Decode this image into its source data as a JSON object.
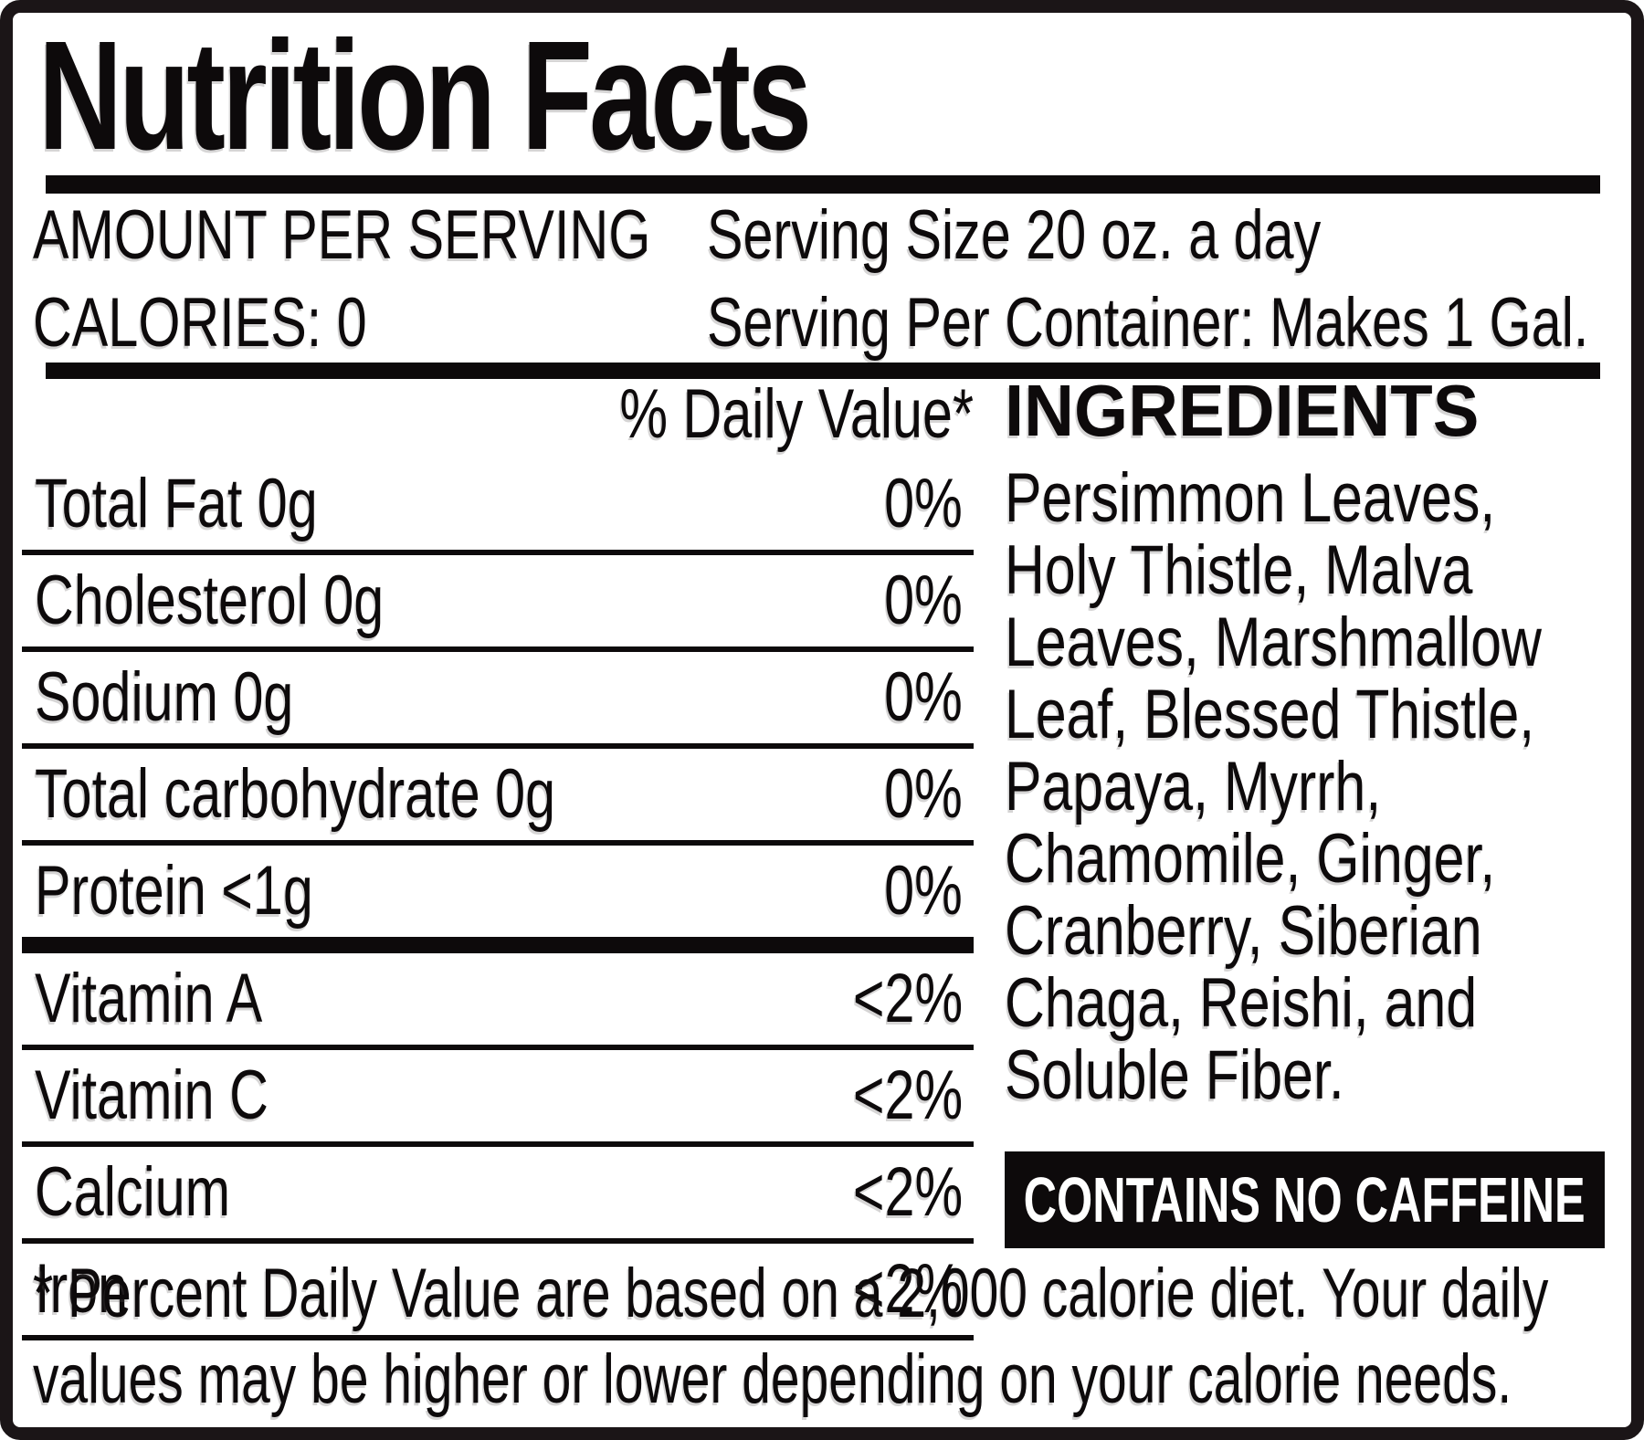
{
  "title": "Nutrition Facts",
  "header": {
    "amount_label": "AMOUNT PER SERVING",
    "calories_label": "CALORIES: 0",
    "serving_size": "Serving Size 20 oz. a day",
    "serving_per_container": "Serving Per Container: Makes 1 Gal."
  },
  "table": {
    "daily_value_header": "% Daily Value*",
    "rows": [
      {
        "label": "Total Fat 0g",
        "value": "0%"
      },
      {
        "label": "Cholesterol 0g",
        "value": "0%"
      },
      {
        "label": "Sodium 0g",
        "value": "0%"
      },
      {
        "label": "Total carbohydrate 0g",
        "value": "0%"
      },
      {
        "label": "Protein <1g",
        "value": "0%"
      },
      {
        "label": "Vitamin A",
        "value": "<2%"
      },
      {
        "label": "Vitamin C",
        "value": "<2%"
      },
      {
        "label": "Calcium",
        "value": "<2%"
      },
      {
        "label": "Iron",
        "value": "<2%"
      }
    ]
  },
  "ingredients": {
    "heading": "INGREDIENTS",
    "lines": [
      "Persimmon Leaves,",
      "Holy Thistle, Malva",
      "Leaves, Marshmallow",
      "Leaf, Blessed Thistle,",
      "Papaya, Myrrh,",
      "Chamomile, Ginger,",
      "Cranberry, Siberian",
      "Chaga, Reishi, and",
      "Soluble Fiber."
    ]
  },
  "badge": {
    "text": "CONTAINS NO CAFFEINE"
  },
  "footnote": {
    "lines": [
      "* Percent Daily Value are based on a 2,000 calorie diet. Your daily",
      "values may be higher or lower depending on your calorie needs."
    ]
  },
  "colors": {
    "background": "#ffffff",
    "text": "#0d0a0b",
    "frame": "#1b1517",
    "badge_bg": "#0d0a0b",
    "badge_text": "#ffffff"
  }
}
